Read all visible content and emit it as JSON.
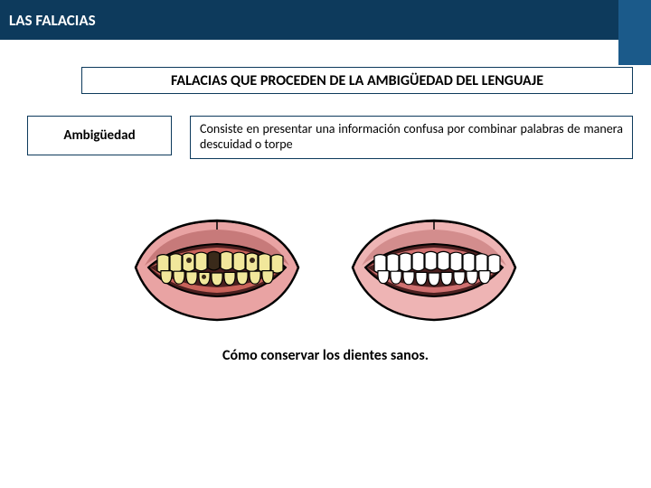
{
  "header": {
    "title": "LAS FALACIAS",
    "colors": {
      "bar_bg": "#0d3a5c",
      "accent_bg": "#1b5a8a",
      "text": "#ffffff"
    }
  },
  "subtitle": {
    "text": "FALACIAS QUE  PROCEDEN DE LA AMBIGÜEDAD DEL LENGUAJE",
    "border_color": "#0d3a5c"
  },
  "concept": {
    "label": "Ambigüedad",
    "definition": "Consiste en presentar una información confusa por combinar palabras de manera descuidad o torpe"
  },
  "illustration": {
    "caption": "Cómo  conservar los dientes sanos.",
    "mouths": [
      {
        "type": "bad",
        "lip_color": "#e9a3a3",
        "lip_shadow": "#c77a7a",
        "teeth_color": "#f1e79b",
        "gum_color": "#c9625a",
        "cavity_color": "#3a2a1a",
        "outline": "#000000"
      },
      {
        "type": "good",
        "lip_color": "#eeb4b4",
        "lip_shadow": "#d38d8d",
        "teeth_color": "#ffffff",
        "gum_color": "#d07070",
        "cavity_color": "#ffffff",
        "outline": "#000000"
      }
    ]
  }
}
